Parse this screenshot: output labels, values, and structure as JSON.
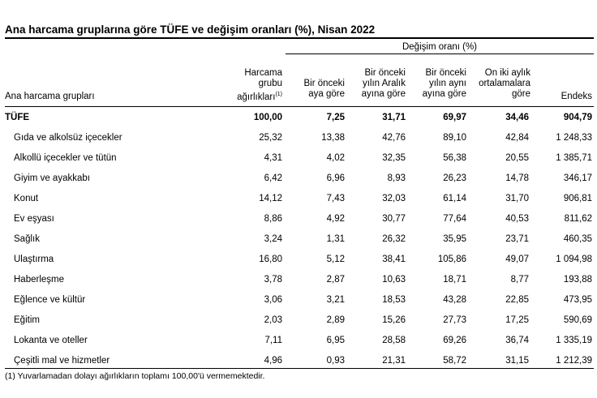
{
  "title": "Ana harcama gruplarına göre TÜFE ve değişim oranları (%), Nisan 2022",
  "table": {
    "group_header": "Değişim oranı (%)",
    "columns": {
      "name": "Ana harcama grupları",
      "weight": [
        "Harcama",
        "grubu",
        "ağırlıkları"
      ],
      "weight_note": "(1)",
      "mom": [
        "Bir önceki",
        "aya göre"
      ],
      "ytd": [
        "Bir önceki",
        "yılın Aralık",
        "ayına göre"
      ],
      "yoy": [
        "Bir önceki",
        "yılın aynı",
        "ayına göre"
      ],
      "avg12": [
        "On iki aylık",
        "ortalamalara",
        "göre"
      ],
      "index": "Endeks"
    },
    "rows": [
      {
        "name": "TÜFE",
        "weight": "100,00",
        "mom": "7,25",
        "ytd": "31,71",
        "yoy": "69,97",
        "avg12": "34,46",
        "index": "904,79"
      },
      {
        "name": "Gıda ve alkolsüz içecekler",
        "weight": "25,32",
        "mom": "13,38",
        "ytd": "42,76",
        "yoy": "89,10",
        "avg12": "42,84",
        "index": "1 248,33"
      },
      {
        "name": "Alkollü içecekler ve tütün",
        "weight": "4,31",
        "mom": "4,02",
        "ytd": "32,35",
        "yoy": "56,38",
        "avg12": "20,55",
        "index": "1 385,71"
      },
      {
        "name": "Giyim ve ayakkabı",
        "weight": "6,42",
        "mom": "6,96",
        "ytd": "8,93",
        "yoy": "26,23",
        "avg12": "14,78",
        "index": "346,17"
      },
      {
        "name": "Konut",
        "weight": "14,12",
        "mom": "7,43",
        "ytd": "32,03",
        "yoy": "61,14",
        "avg12": "31,70",
        "index": "906,81"
      },
      {
        "name": "Ev eşyası",
        "weight": "8,86",
        "mom": "4,92",
        "ytd": "30,77",
        "yoy": "77,64",
        "avg12": "40,53",
        "index": "811,62"
      },
      {
        "name": "Sağlık",
        "weight": "3,24",
        "mom": "1,31",
        "ytd": "26,32",
        "yoy": "35,95",
        "avg12": "23,71",
        "index": "460,35"
      },
      {
        "name": "Ulaştırma",
        "weight": "16,80",
        "mom": "5,12",
        "ytd": "38,41",
        "yoy": "105,86",
        "avg12": "49,07",
        "index": "1 094,98"
      },
      {
        "name": "Haberleşme",
        "weight": "3,78",
        "mom": "2,87",
        "ytd": "10,63",
        "yoy": "18,71",
        "avg12": "8,77",
        "index": "193,88"
      },
      {
        "name": "Eğlence ve kültür",
        "weight": "3,06",
        "mom": "3,21",
        "ytd": "18,53",
        "yoy": "43,28",
        "avg12": "22,85",
        "index": "473,95"
      },
      {
        "name": "Eğitim",
        "weight": "2,03",
        "mom": "2,89",
        "ytd": "15,26",
        "yoy": "27,73",
        "avg12": "17,25",
        "index": "590,69"
      },
      {
        "name": "Lokanta ve oteller",
        "weight": "7,11",
        "mom": "6,95",
        "ytd": "28,58",
        "yoy": "69,26",
        "avg12": "36,74",
        "index": "1 335,19"
      },
      {
        "name": "Çeşitli mal ve hizmetler",
        "weight": "4,96",
        "mom": "0,93",
        "ytd": "21,31",
        "yoy": "58,72",
        "avg12": "31,15",
        "index": "1 212,39"
      }
    ]
  },
  "footnote": "(1) Yuvarlamadan dolayı ağırlıkların toplamı 100,00'ü vermemektedir."
}
